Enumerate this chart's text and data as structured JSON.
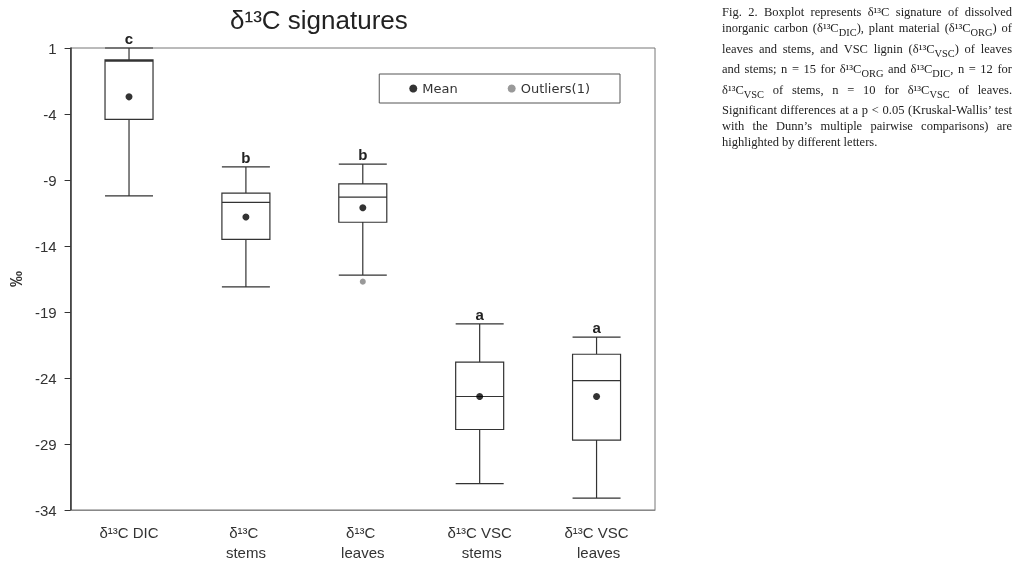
{
  "chart_data": {
    "type": "box",
    "title": "δ¹³C signatures",
    "ylabel": "‰",
    "categories": [
      "δ¹³C DIC",
      "δ¹³C stems",
      "δ¹³C leaves",
      "δ¹³C VSC stems",
      "δ¹³C VSC leaves"
    ],
    "series": [
      {
        "color": "#333333",
        "boxes": [
          {
            "low": -10.2,
            "q1": -4.4,
            "median": 0.0,
            "q3": 0.1,
            "high": 1.0
          },
          {
            "low": -17.1,
            "q1": -13.5,
            "median": -10.7,
            "q3": -10.0,
            "high": -8.0
          },
          {
            "low": -16.2,
            "q1": -12.2,
            "median": -10.3,
            "q3": -9.3,
            "high": -7.8
          },
          {
            "low": -32.0,
            "q1": -27.9,
            "median": -25.4,
            "q3": -22.8,
            "high": -19.9
          },
          {
            "low": -33.1,
            "q1": -28.7,
            "median": -24.2,
            "q3": -22.2,
            "high": -20.9
          }
        ]
      },
      {
        "type": "scatter",
        "name": "Mean",
        "color": "#000000",
        "x": [
          "δ¹³C DIC",
          "δ¹³C stems",
          "δ¹³C leaves",
          "δ¹³C VSC stems",
          "δ¹³C VSC leaves"
        ],
        "values": [
          -2.7,
          -11.8,
          -11.1,
          -25.4,
          -25.4
        ]
      },
      {
        "type": "scatter",
        "name": "Outliers(1)",
        "color": "#808080",
        "x": [
          "δ¹³C leaves"
        ],
        "values": [
          -16.7
        ]
      }
    ],
    "ylim": [
      -34,
      1
    ],
    "yticks": [
      -34,
      -29,
      -24,
      -19,
      -14,
      -9,
      -4,
      1
    ],
    "grid": false,
    "legend": "top right",
    "marker": "circle",
    "annotations": [
      {
        "text": "c",
        "x": "δ¹³C DIC",
        "y": 1.0
      },
      {
        "text": "b",
        "x": "δ¹³C stems",
        "y": -8.0
      },
      {
        "text": "b",
        "x": "δ¹³C leaves",
        "y": -7.8
      },
      {
        "text": "a",
        "x": "δ¹³C VSC stems",
        "y": -19.9
      },
      {
        "text": "a",
        "x": "δ¹³C VSC leaves",
        "y": -20.9
      },
      "Fig. 2. Boxplot represents δ¹³C signature of dissolved inorganic carbon (δ¹³C$_{DIC}$), plant material (δ¹³C$_{ORG}$) of leaves and stems, and VSC lignin (δ¹³C$_{VSC}$) of leaves and stems; n = 15 for δ¹³C$_{ORG}$ and δ¹³C$_{DIC}$, n = 12 for δ¹³C$_{VSC}$ of stems, n = 10 for δ¹³C$_{VSC}$ of leaves. Significant differences at a p < 0.05 (Kruskal-Wallis’ test with the Dunn’s multiple pairwise comparisons) are highlighted by different letters."
    ]
  }
}
